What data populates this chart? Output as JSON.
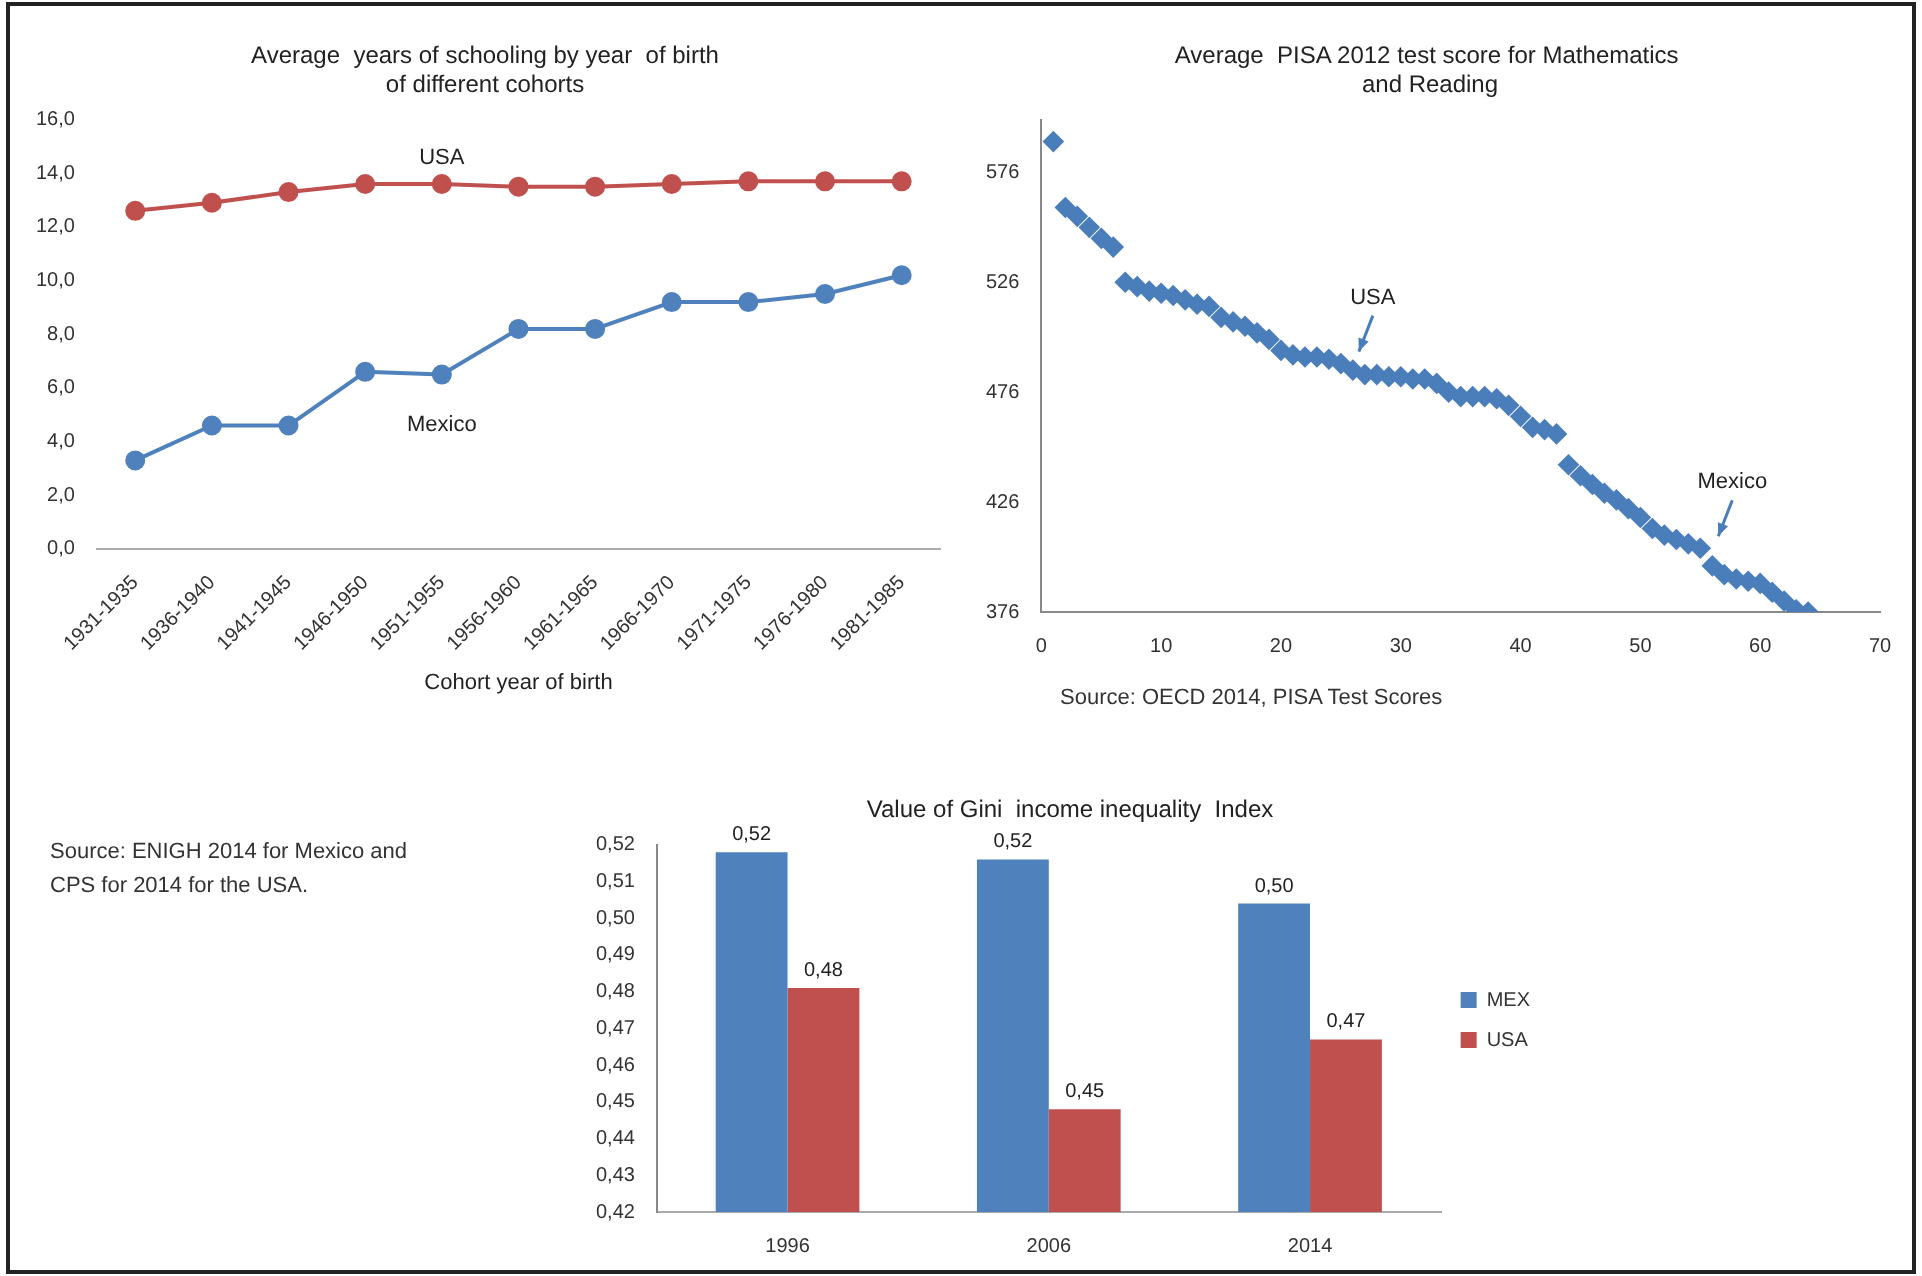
{
  "chart_data": [
    {
      "type": "line",
      "title": "Average  years of schooling by year  of birth of different cohorts",
      "xlabel": "Cohort year of birth",
      "categories": [
        "1931-1935",
        "1936-1940",
        "1941-1945",
        "1946-1950",
        "1951-1955",
        "1956-1960",
        "1961-1965",
        "1966-1970",
        "1971-1975",
        "1976-1980",
        "1981-1985"
      ],
      "series": [
        {
          "name": "USA",
          "color": "#c0504d",
          "values": [
            12.6,
            12.9,
            13.3,
            13.6,
            13.6,
            13.5,
            13.5,
            13.6,
            13.7,
            13.7,
            13.7
          ]
        },
        {
          "name": "Mexico",
          "color": "#4f81bd",
          "values": [
            3.3,
            4.6,
            4.6,
            6.6,
            6.5,
            8.2,
            8.2,
            9.2,
            9.2,
            9.5,
            10.2
          ]
        }
      ],
      "ylim": [
        0,
        16
      ],
      "yticks": [
        {
          "value": 0,
          "label": "0,0"
        },
        {
          "value": 2,
          "label": "2,0"
        },
        {
          "value": 4,
          "label": "4,0"
        },
        {
          "value": 6,
          "label": "6,0"
        },
        {
          "value": 8,
          "label": "8,0"
        },
        {
          "value": 10,
          "label": "10,0"
        },
        {
          "value": 12,
          "label": "12,0"
        },
        {
          "value": 14,
          "label": "14,0"
        },
        {
          "value": 16,
          "label": "16,0"
        }
      ],
      "grid": false,
      "legend": false,
      "marker": "circle",
      "line_style": "solid"
    },
    {
      "type": "scatter",
      "title": "Average  PISA 2012 test score for Mathematics  and Reading",
      "x": [
        1,
        2,
        3,
        4,
        5,
        6,
        7,
        8,
        9,
        10,
        11,
        12,
        13,
        14,
        15,
        16,
        17,
        18,
        19,
        20,
        21,
        22,
        23,
        24,
        25,
        26,
        27,
        28,
        29,
        30,
        31,
        32,
        33,
        34,
        35,
        36,
        37,
        38,
        39,
        40,
        41,
        42,
        43,
        44,
        45,
        46,
        47,
        48,
        49,
        50,
        51,
        52,
        53,
        54,
        55,
        56,
        57,
        58,
        59,
        60,
        61,
        62,
        63,
        64
      ],
      "series": [
        {
          "color": "#4a7ebb",
          "values": [
            590,
            560,
            556,
            551,
            546,
            542,
            526,
            524,
            522,
            521,
            520,
            518,
            516,
            515,
            510,
            508,
            506,
            503,
            500,
            495,
            493,
            492,
            492,
            491,
            489,
            486,
            484,
            484,
            483,
            483,
            482,
            482,
            480,
            476,
            474,
            474,
            474,
            473,
            470,
            465,
            460,
            459,
            457,
            443,
            438,
            434,
            430,
            427,
            423,
            419,
            414,
            411,
            409,
            407,
            405,
            397,
            393,
            391,
            390,
            389,
            385,
            381,
            377,
            376
          ]
        }
      ],
      "xlim": [
        0,
        70
      ],
      "xticks": [
        0,
        10,
        20,
        30,
        40,
        50,
        60,
        70
      ],
      "ylim": [
        376,
        600
      ],
      "yticks": [
        376,
        426,
        476,
        526,
        576
      ],
      "annotations": [
        {
          "text": "USA",
          "x": 26,
          "y": 489
        },
        {
          "text": "Mexico",
          "x": 56,
          "y": 405
        },
        "Source: OECD 2014, PISA Test Scores"
      ],
      "grid": false,
      "legend": false,
      "marker": "diamond"
    },
    {
      "type": "bar",
      "title": "Value of Gini  income inequality  Index",
      "categories": [
        "1996",
        "2006",
        "2014"
      ],
      "series": [
        {
          "name": "MEX",
          "color": "#4f81bd",
          "values": [
            0.518,
            0.516,
            0.504
          ],
          "value_labels": [
            "0,52",
            "0,52",
            "0,50"
          ]
        },
        {
          "name": "USA",
          "color": "#c0504d",
          "values": [
            0.481,
            0.448,
            0.467
          ],
          "value_labels": [
            "0,48",
            "0,45",
            "0,47"
          ]
        }
      ],
      "ylim": [
        0.42,
        0.52
      ],
      "yticks": [
        {
          "value": 0.42,
          "label": "0,42"
        },
        {
          "value": 0.43,
          "label": "0,43"
        },
        {
          "value": 0.44,
          "label": "0,44"
        },
        {
          "value": 0.45,
          "label": "0,45"
        },
        {
          "value": 0.46,
          "label": "0,46"
        },
        {
          "value": 0.47,
          "label": "0,47"
        },
        {
          "value": 0.48,
          "label": "0,48"
        },
        {
          "value": 0.49,
          "label": "0,49"
        },
        {
          "value": 0.5,
          "label": "0,50"
        },
        {
          "value": 0.51,
          "label": "0,51"
        },
        {
          "value": 0.52,
          "label": "0,52"
        }
      ],
      "annotations": [
        "Source: ENIGH  2014 for Mexico and CPS for 2014 for the USA."
      ],
      "grid": false,
      "legend": "right"
    }
  ]
}
